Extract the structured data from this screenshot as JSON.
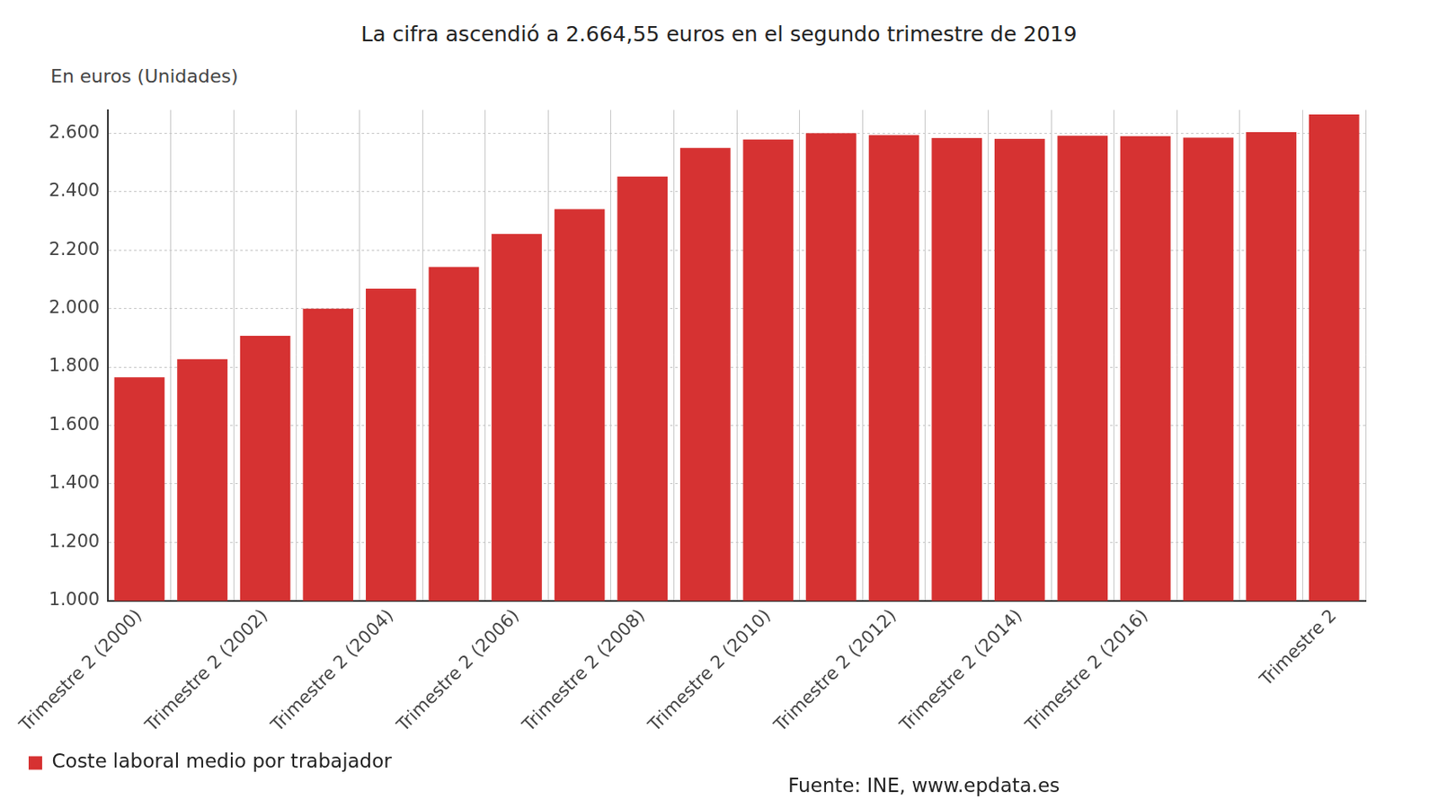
{
  "chart_data": {
    "type": "bar",
    "subtitle": "La cifra ascendió a 2.664,55 euros en el segundo trimestre de 2019",
    "y_label": "En euros (Unidades)",
    "source": "Fuente: INE, www.epdata.es",
    "categories": [
      "Trimestre 2 (2000)",
      null,
      "Trimestre 2 (2002)",
      null,
      "Trimestre 2 (2004)",
      null,
      "Trimestre 2 (2006)",
      null,
      "Trimestre 2 (2008)",
      null,
      "Trimestre 2 (2010)",
      null,
      "Trimestre 2 (2012)",
      null,
      "Trimestre 2 (2014)",
      null,
      "Trimestre 2 (2016)",
      null,
      null,
      "Trimestre 2"
    ],
    "series": [
      {
        "name": "Coste laboral medio por trabajador",
        "color": "#d63232",
        "values": [
          1765,
          1827,
          1907,
          2000,
          2068,
          2142,
          2255,
          2340,
          2452,
          2550,
          2579,
          2600,
          2594,
          2584,
          2581,
          2592,
          2590,
          2585,
          2604,
          2664.55
        ]
      }
    ],
    "ylim": [
      1000,
      2680
    ],
    "yticks": [
      {
        "value": 1000,
        "label": "1.000"
      },
      {
        "value": 1200,
        "label": "1.200"
      },
      {
        "value": 1400,
        "label": "1.400"
      },
      {
        "value": 1600,
        "label": "1.600"
      },
      {
        "value": 1800,
        "label": "1.800"
      },
      {
        "value": 2000,
        "label": "2.000"
      },
      {
        "value": 2200,
        "label": "2.200"
      },
      {
        "value": 2400,
        "label": "2.400"
      },
      {
        "value": 2600,
        "label": "2.600"
      }
    ],
    "grid": true,
    "legend": "bottom"
  }
}
